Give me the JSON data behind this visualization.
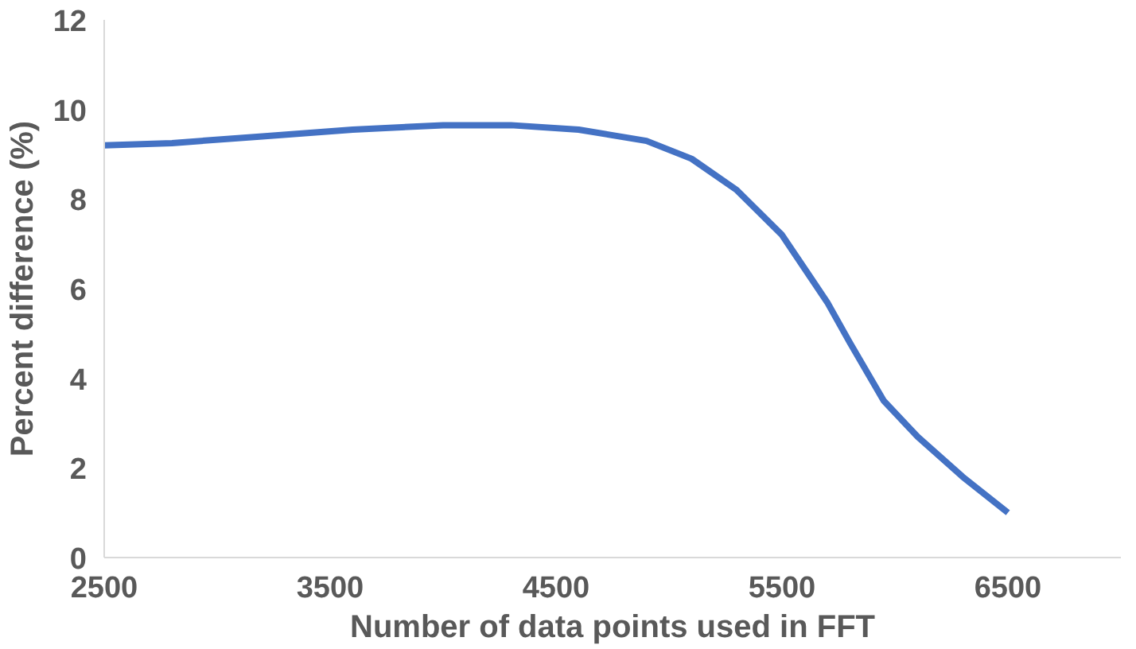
{
  "chart_data": {
    "type": "line",
    "xlabel": "Number of data points used in FFT",
    "ylabel": "Percent difference (%)",
    "x": [
      2500,
      2800,
      3200,
      3600,
      4000,
      4300,
      4600,
      4900,
      5100,
      5300,
      5500,
      5700,
      5800,
      5950,
      6100,
      6300,
      6500
    ],
    "series": [
      {
        "color": "#4472c4",
        "values": [
          9.2,
          9.25,
          9.4,
          9.55,
          9.65,
          9.65,
          9.55,
          9.3,
          8.9,
          8.2,
          7.2,
          5.7,
          4.8,
          3.5,
          2.7,
          1.8,
          1.0
        ]
      }
    ],
    "xlim": [
      2500,
      7000
    ],
    "xticks": [
      2500,
      3500,
      4500,
      5500,
      6500
    ],
    "ylim": [
      0,
      12
    ],
    "yticks": [
      0,
      2,
      4,
      6,
      8,
      10,
      12
    ],
    "grid": false,
    "marker": "none",
    "line_style": "solid"
  }
}
